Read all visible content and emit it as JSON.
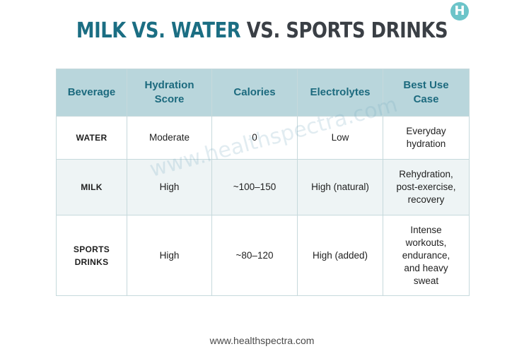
{
  "logo": {
    "letter": "H"
  },
  "title": {
    "part1": "MILK VS. WATER",
    "part2": " VS. SPORTS DRINKS"
  },
  "table": {
    "headers": [
      "Beverage",
      "Hydration\nScore",
      "Calories",
      "Electrolytes",
      "Best Use\nCase"
    ],
    "rows": [
      [
        "WATER",
        "Moderate",
        "0",
        "Low",
        "Everyday\nhydration"
      ],
      [
        "MILK",
        "High",
        "~100–150",
        "High (natural)",
        "Rehydration,\npost-exercise,\nrecovery"
      ],
      [
        "SPORTS\nDRINKS",
        "High",
        "~80–120",
        "High (added)",
        "Intense\nworkouts,\nendurance,\nand heavy\nsweat"
      ]
    ]
  },
  "watermark": "www.healthspectra.com",
  "footer": "www.healthspectra.com",
  "colors": {
    "accent": "#1b6e83",
    "header_bg": "#b9d6dc",
    "stripe_bg": "#eef4f5"
  }
}
